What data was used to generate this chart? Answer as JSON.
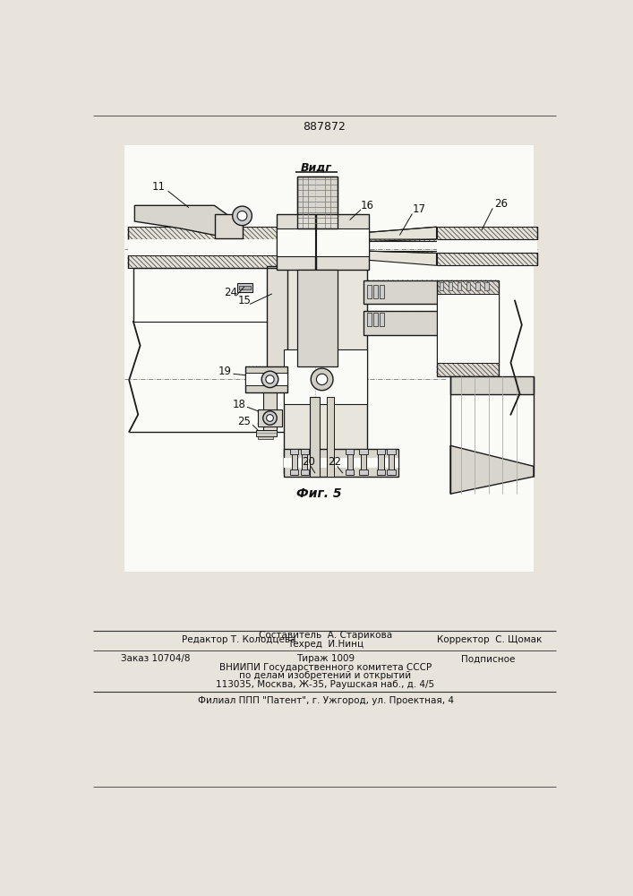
{
  "patent_number": "887872",
  "figure_label": "Фиг. 5",
  "view_label": "Видг",
  "bg_color": "#ffffff",
  "page_bg": "#e8e4dc",
  "line_color": "#1a1a1a",
  "text_color": "#111111",
  "hatch_color": "#333333",
  "footer": {
    "editor_label": "Редактор Т. Колодцева",
    "composer_label": "Составитель  А. Старикова",
    "techred_label": "Техред  И.Нинц",
    "corrector_label": "Корректор  С. Щомак",
    "order_label": "Заказ 10704/8",
    "tirazh_label": "Тираж 1009",
    "podpisnoe_label": "Подписное",
    "vnipi_line1": "ВНИИПИ Государственного комитета СССР",
    "vnipi_line2": "по делам изобретений и открытий",
    "vnipi_line3": "113035, Москва, Ж-35, Раушская наб., д. 4/5",
    "filial_line": "Филиал ППП \"Патент\", г. Ужгород, ул. Проектная, 4"
  }
}
